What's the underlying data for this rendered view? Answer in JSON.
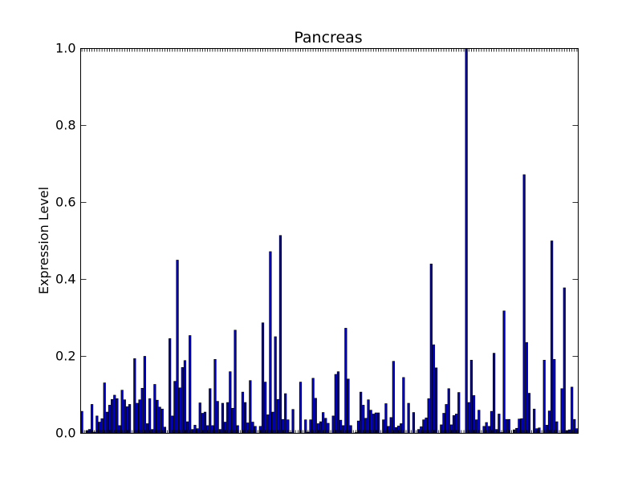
{
  "chart_data": {
    "type": "bar",
    "title": "Pancreas",
    "xlabel": "",
    "ylabel": "Expression Level",
    "ylim": [
      0,
      1.0
    ],
    "yticks": [
      "0.0",
      "0.2",
      "0.4",
      "0.6",
      "0.8",
      "1.0"
    ],
    "bar_color": "#0000cc",
    "edge_color": "#000000",
    "values": [
      0.057,
      0.0,
      0.007,
      0.01,
      0.075,
      0.003,
      0.045,
      0.029,
      0.038,
      0.131,
      0.055,
      0.073,
      0.088,
      0.099,
      0.09,
      0.02,
      0.112,
      0.087,
      0.069,
      0.075,
      0.0,
      0.194,
      0.078,
      0.087,
      0.117,
      0.2,
      0.025,
      0.09,
      0.01,
      0.127,
      0.086,
      0.068,
      0.063,
      0.016,
      0.0,
      0.246,
      0.045,
      0.135,
      0.45,
      0.118,
      0.171,
      0.189,
      0.03,
      0.254,
      0.01,
      0.021,
      0.012,
      0.079,
      0.052,
      0.055,
      0.02,
      0.116,
      0.02,
      0.192,
      0.083,
      0.01,
      0.078,
      0.029,
      0.08,
      0.16,
      0.065,
      0.268,
      0.02,
      0.0,
      0.107,
      0.08,
      0.027,
      0.137,
      0.029,
      0.018,
      0.0,
      0.018,
      0.287,
      0.133,
      0.048,
      0.472,
      0.055,
      0.251,
      0.088,
      0.514,
      0.036,
      0.103,
      0.035,
      0.002,
      0.062,
      0.0,
      0.0,
      0.133,
      0.0,
      0.035,
      0.003,
      0.035,
      0.143,
      0.091,
      0.025,
      0.03,
      0.054,
      0.039,
      0.026,
      0.0,
      0.045,
      0.153,
      0.16,
      0.034,
      0.02,
      0.273,
      0.141,
      0.02,
      0.0,
      0.002,
      0.032,
      0.107,
      0.073,
      0.039,
      0.087,
      0.06,
      0.05,
      0.053,
      0.053,
      0.0,
      0.035,
      0.077,
      0.018,
      0.041,
      0.187,
      0.015,
      0.019,
      0.025,
      0.145,
      0.0,
      0.078,
      0.0,
      0.054,
      0.0,
      0.01,
      0.017,
      0.035,
      0.04,
      0.09,
      0.44,
      0.23,
      0.17,
      0.0,
      0.022,
      0.052,
      0.075,
      0.116,
      0.022,
      0.046,
      0.05,
      0.106,
      0.0,
      0.0,
      1.0,
      0.08,
      0.19,
      0.098,
      0.035,
      0.06,
      0.0,
      0.018,
      0.028,
      0.018,
      0.057,
      0.208,
      0.01,
      0.05,
      0.002,
      0.318,
      0.036,
      0.036,
      0.0,
      0.009,
      0.013,
      0.037,
      0.038,
      0.672,
      0.236,
      0.104,
      0.0,
      0.063,
      0.012,
      0.014,
      0.0,
      0.19,
      0.021,
      0.058,
      0.5,
      0.192,
      0.03,
      0.0,
      0.116,
      0.378,
      0.007,
      0.009,
      0.12,
      0.036,
      0.012
    ]
  }
}
